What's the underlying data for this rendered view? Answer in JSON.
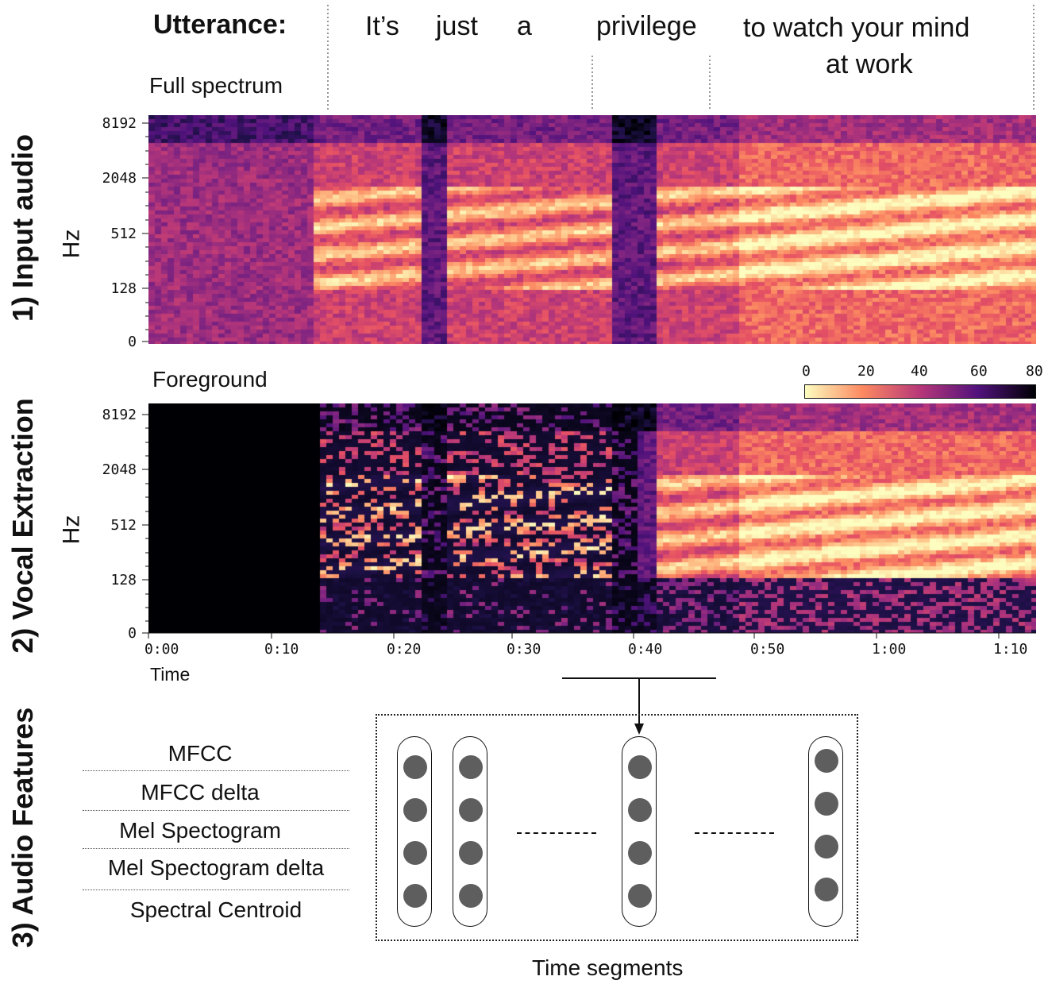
{
  "header": {
    "utterance_label": "Utterance:",
    "words": [
      "It’s",
      "just",
      "a",
      "privilege",
      "to watch your mind",
      "at  work"
    ]
  },
  "sections": {
    "input_audio": "1) Input audio",
    "vocal_extraction": "2) Vocal Extraction",
    "audio_features": "3) Audio Features"
  },
  "spectrogram_full": {
    "title": "Full spectrum",
    "ylabel": "Hz",
    "yticks": [
      "8192",
      "2048",
      "512",
      "128",
      "0"
    ]
  },
  "spectrogram_foreground": {
    "title": "Foreground",
    "ylabel": "Hz",
    "yticks": [
      "8192",
      "2048",
      "512",
      "128",
      "0"
    ],
    "xlabel": "Time",
    "xticks": [
      "0:00",
      "0:10",
      "0:20",
      "0:30",
      "0:40",
      "0:50",
      "1:00",
      "1:10"
    ]
  },
  "colorbar": {
    "ticks": [
      "0",
      "20",
      "40",
      "60",
      "80"
    ],
    "colors": [
      "#fcfdbf",
      "#fc8961",
      "#b73779",
      "#51127c",
      "#000004"
    ]
  },
  "features": {
    "items": [
      "MFCC",
      "MFCC delta",
      "Mel Spectogram",
      "Mel Spectogram delta",
      "Spectral Centroid"
    ],
    "xlabel": "Time segments"
  }
}
